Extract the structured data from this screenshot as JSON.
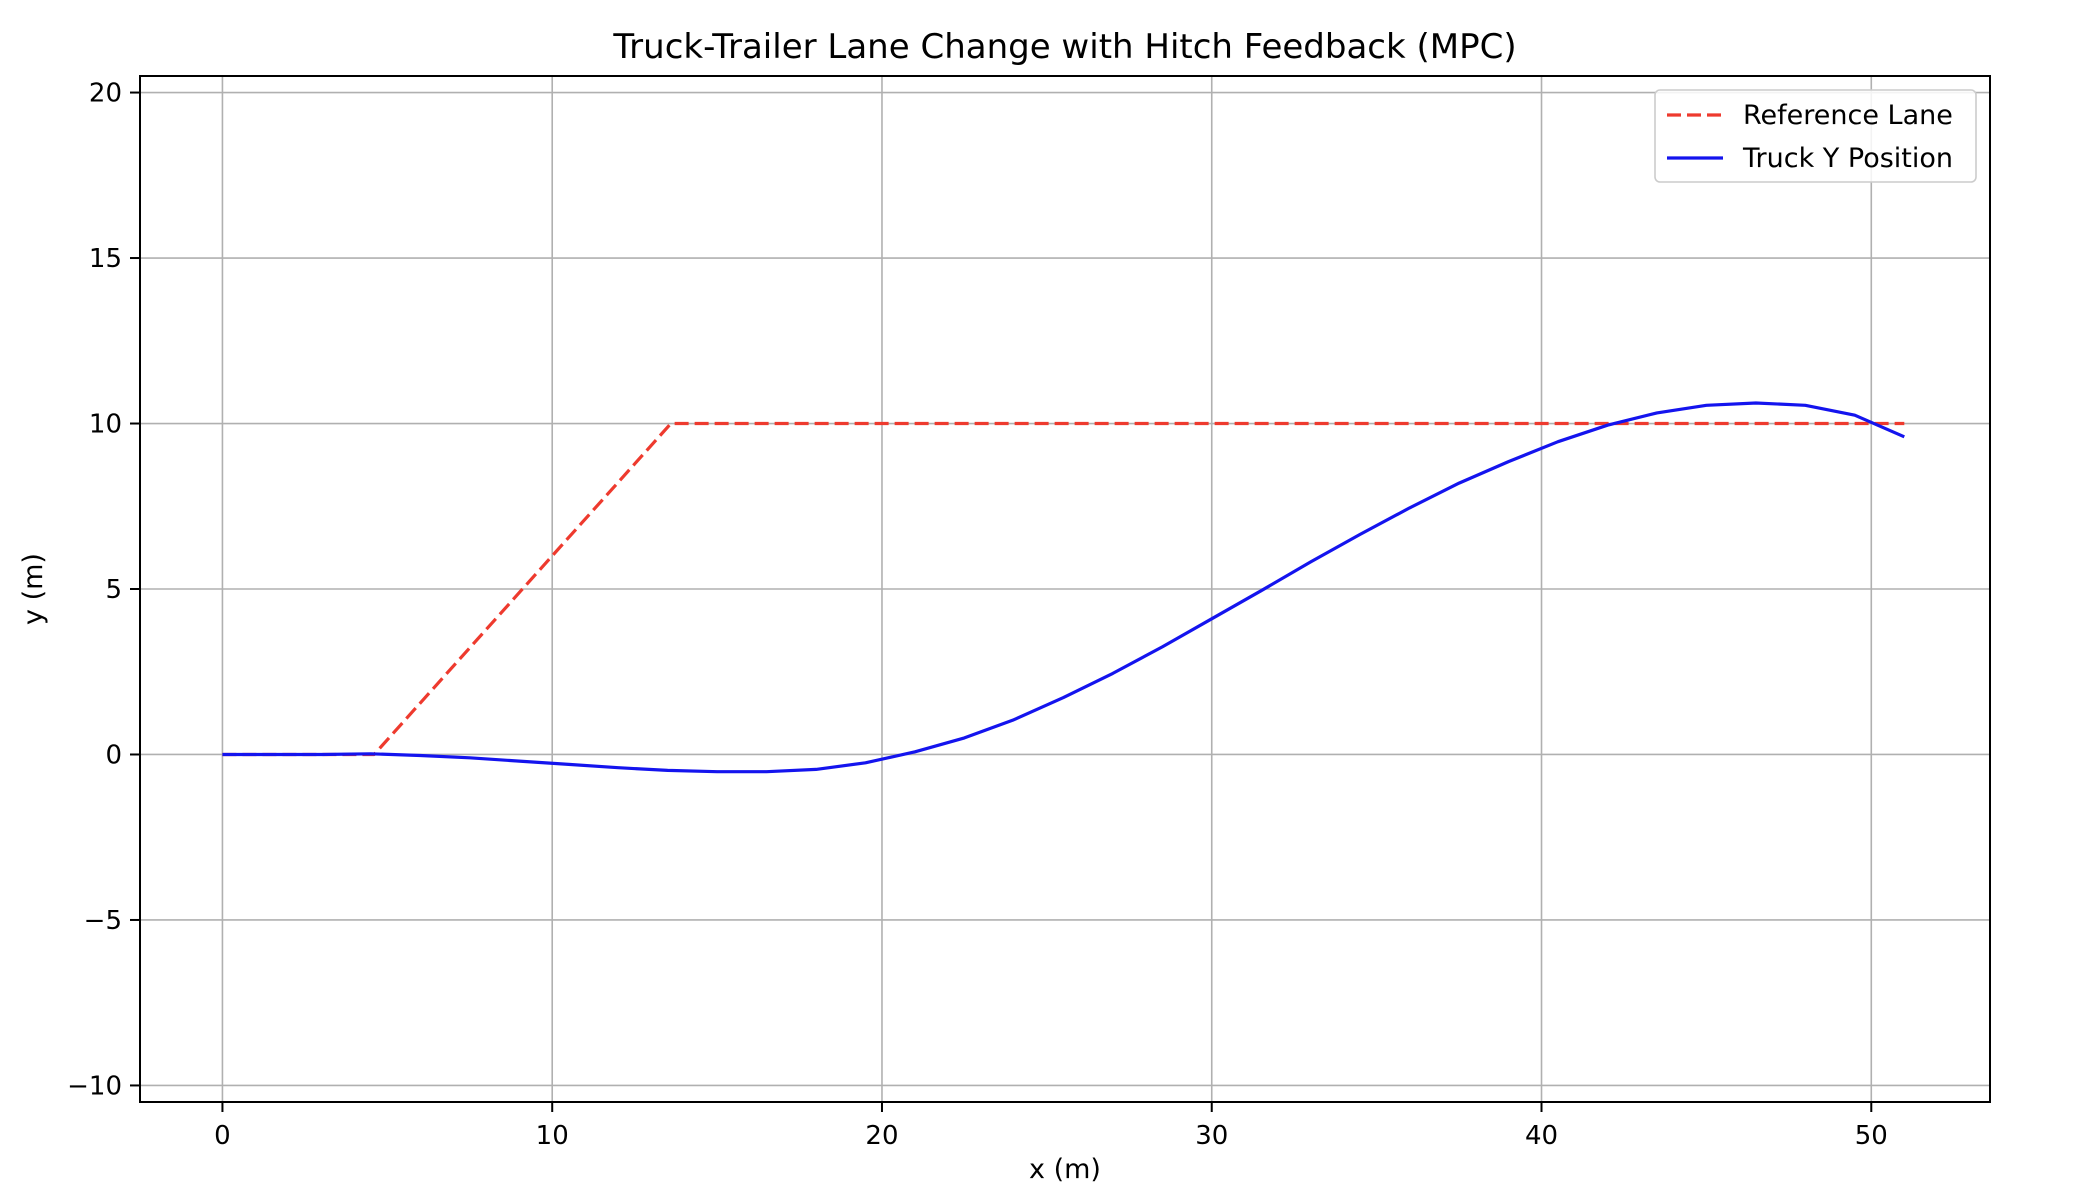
{
  "chart_data": {
    "type": "line",
    "title": "Truck-Trailer Lane Change with Hitch Feedback (MPC)",
    "xlabel": "x (m)",
    "ylabel": "y (m)",
    "xlim": [
      -2.5,
      53.6
    ],
    "ylim": [
      -10.5,
      20.5
    ],
    "xticks": [
      0,
      10,
      20,
      30,
      40,
      50
    ],
    "yticks": [
      -10,
      -5,
      0,
      5,
      10,
      15,
      20
    ],
    "xtick_labels": [
      "0",
      "10",
      "20",
      "30",
      "40",
      "50"
    ],
    "ytick_labels": [
      "−10",
      "−5",
      "0",
      "5",
      "10",
      "15",
      "20"
    ],
    "grid": true,
    "legend_position": "top-right",
    "series": [
      {
        "name": "Reference Lane",
        "style": "dashed",
        "color": "#ee3a2e",
        "x": [
          0,
          4.6,
          13.6,
          51
        ],
        "y": [
          0,
          0,
          10,
          10
        ]
      },
      {
        "name": "Truck Y Position",
        "style": "solid",
        "color": "#1414ee",
        "x": [
          0,
          1.5,
          3,
          4.5,
          6,
          7.5,
          9,
          10.5,
          12,
          13.5,
          15,
          16.5,
          18,
          19.5,
          21,
          22.5,
          24,
          25.5,
          27,
          28.5,
          30,
          31.5,
          33,
          34.5,
          36,
          37.5,
          39,
          40.5,
          42,
          43.5,
          45,
          46.5,
          48,
          49.5,
          51
        ],
        "y": [
          0,
          0,
          0,
          0.02,
          -0.03,
          -0.1,
          -0.2,
          -0.3,
          -0.4,
          -0.48,
          -0.52,
          -0.52,
          -0.45,
          -0.25,
          0.08,
          0.5,
          1.05,
          1.72,
          2.45,
          3.25,
          4.1,
          4.95,
          5.82,
          6.65,
          7.45,
          8.2,
          8.85,
          9.45,
          9.95,
          10.32,
          10.55,
          10.62,
          10.55,
          10.25,
          9.6
        ]
      }
    ]
  }
}
